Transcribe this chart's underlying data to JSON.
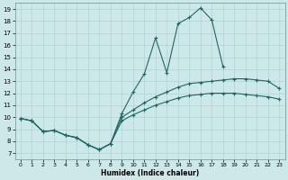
{
  "xlabel": "Humidex (Indice chaleur)",
  "background_color": "#cce8e8",
  "grid_color": "#aacccc",
  "line_color": "#226666",
  "xlim": [
    -0.5,
    23.5
  ],
  "ylim": [
    6.5,
    19.5
  ],
  "xticks": [
    0,
    1,
    2,
    3,
    4,
    5,
    6,
    7,
    8,
    9,
    10,
    11,
    12,
    13,
    14,
    15,
    16,
    17,
    18,
    19,
    20,
    21,
    22,
    23
  ],
  "yticks": [
    7,
    8,
    9,
    10,
    11,
    12,
    13,
    14,
    15,
    16,
    17,
    18,
    19
  ],
  "line1": {
    "x": [
      0,
      1,
      2,
      3,
      4,
      5,
      6,
      7,
      8,
      9,
      10,
      11,
      12,
      13,
      14,
      15,
      16,
      17,
      18
    ],
    "y": [
      9.9,
      9.7,
      8.8,
      8.9,
      8.5,
      8.3,
      7.7,
      7.3,
      7.8,
      10.3,
      12.1,
      13.6,
      16.6,
      13.7,
      17.8,
      18.3,
      19.1,
      18.1,
      14.2
    ]
  },
  "line2": {
    "x": [
      0,
      1,
      2,
      3,
      4,
      5,
      6,
      7,
      8,
      9,
      10,
      11,
      12,
      13,
      14,
      15,
      16,
      17,
      18,
      19,
      20,
      21,
      22,
      23
    ],
    "y": [
      9.9,
      9.7,
      8.8,
      8.9,
      8.5,
      8.3,
      7.7,
      7.3,
      7.8,
      10.0,
      10.6,
      11.2,
      11.7,
      12.1,
      12.5,
      12.8,
      12.9,
      13.0,
      13.1,
      13.2,
      13.2,
      13.1,
      13.0,
      12.4
    ]
  },
  "line3": {
    "x": [
      0,
      1,
      2,
      3,
      4,
      5,
      6,
      7,
      8,
      9,
      10,
      11,
      12,
      13,
      14,
      15,
      16,
      17,
      18,
      19,
      20,
      21,
      22,
      23
    ],
    "y": [
      9.9,
      9.7,
      8.8,
      8.9,
      8.5,
      8.3,
      7.7,
      7.3,
      7.8,
      9.7,
      10.2,
      10.6,
      11.0,
      11.3,
      11.6,
      11.8,
      11.9,
      12.0,
      12.0,
      12.0,
      11.9,
      11.8,
      11.7,
      11.5
    ]
  }
}
